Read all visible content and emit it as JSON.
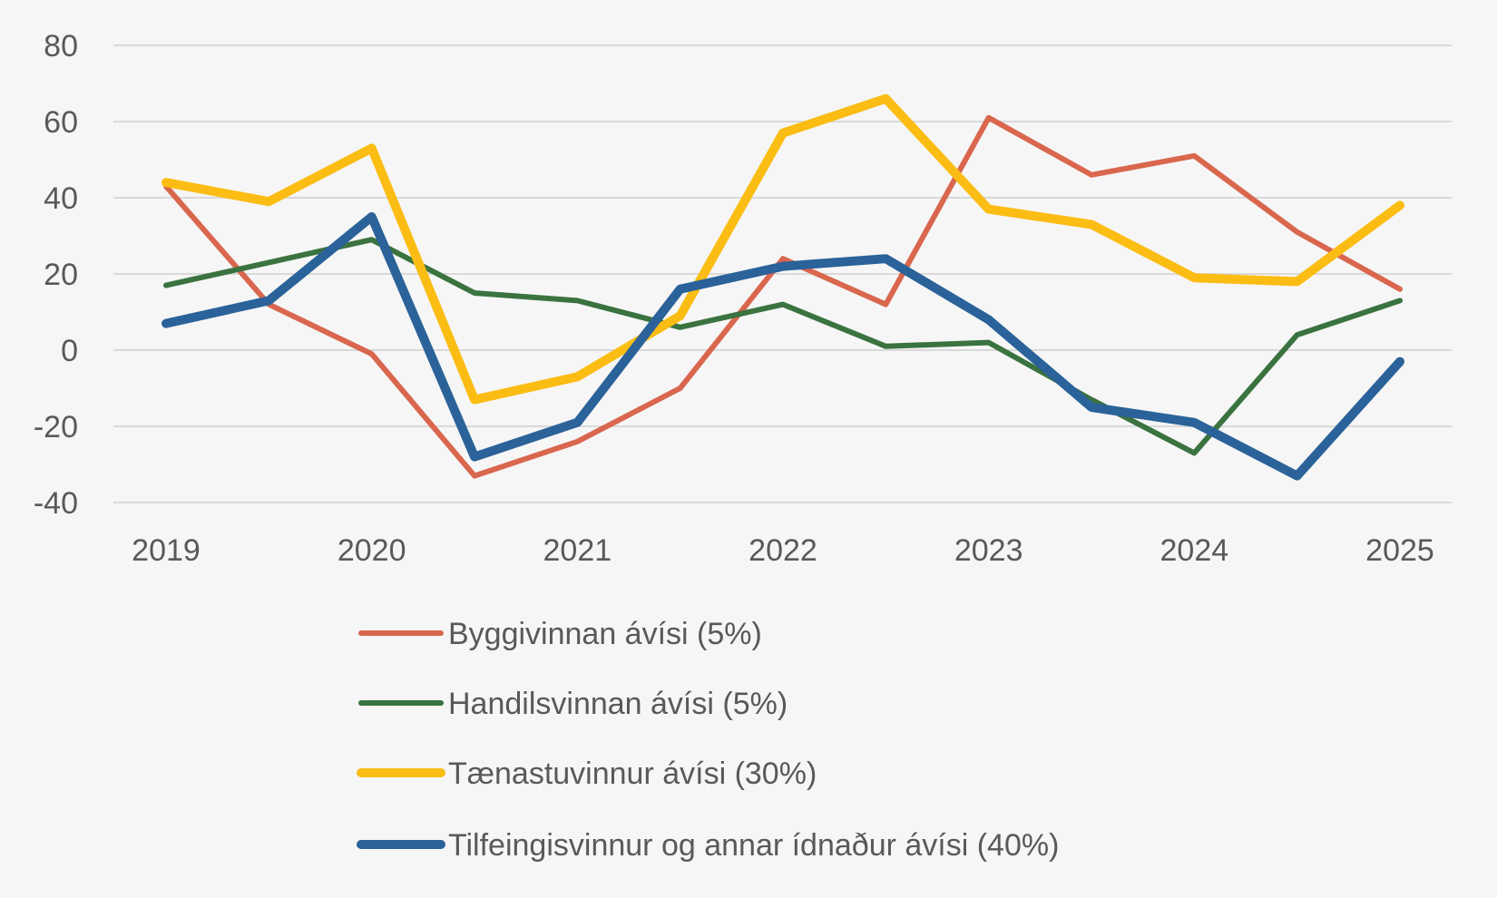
{
  "chart_data": {
    "type": "line",
    "title": "",
    "xlabel": "",
    "ylabel": "",
    "ylim": [
      -40,
      80
    ],
    "yticks": [
      80,
      60,
      40,
      20,
      0,
      -20,
      -40
    ],
    "x_tick_labels": [
      "2019",
      "2020",
      "2021",
      "2022",
      "2023",
      "2024",
      "2025"
    ],
    "x": [
      2019,
      2019.5,
      2020,
      2020.5,
      2021,
      2021.5,
      2022,
      2022.5,
      2023,
      2023.5,
      2024,
      2024.5,
      2025
    ],
    "grid": true,
    "legend_position": "bottom",
    "series": [
      {
        "name": "Byggivinnan ávísi (5%)",
        "color": "#d9674e",
        "width": "thin",
        "values": [
          43,
          12,
          -1,
          -33,
          -24,
          -10,
          24,
          12,
          61,
          46,
          51,
          31,
          16
        ]
      },
      {
        "name": "Handilsvinnan ávísi (5%)",
        "color": "#3a7340",
        "width": "thin",
        "values": [
          17,
          23,
          29,
          15,
          13,
          6,
          12,
          1,
          2,
          -13,
          -27,
          4,
          13
        ]
      },
      {
        "name": "Tænastuvinnur ávísi (30%)",
        "color": "#fbbd14",
        "width": "thick",
        "values": [
          44,
          39,
          53,
          -13,
          -7,
          9,
          57,
          66,
          37,
          33,
          19,
          18,
          38
        ]
      },
      {
        "name": "Tilfeingisvinnur og annar ídnaður ávísi (40%)",
        "color": "#2a6299",
        "width": "thick",
        "values": [
          7,
          13,
          35,
          -28,
          -19,
          16,
          22,
          24,
          8,
          -15,
          -19,
          -33,
          -3
        ]
      }
    ]
  }
}
